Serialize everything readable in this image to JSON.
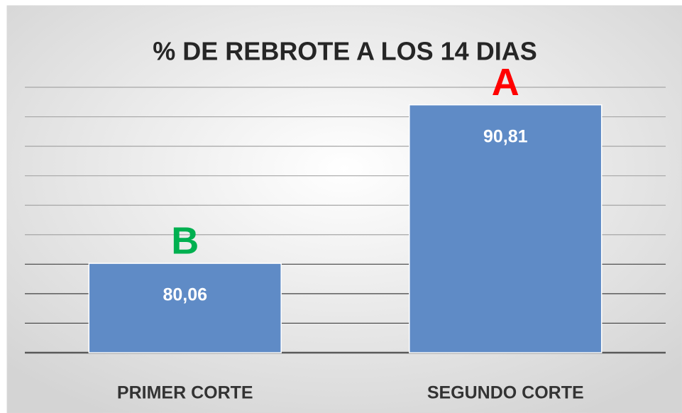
{
  "chart_data": {
    "type": "bar",
    "title": "% DE REBROTE A LOS 14 DIAS",
    "categories": [
      "PRIMER CORTE",
      "SEGUNDO CORTE"
    ],
    "values": [
      80.06,
      90.81
    ],
    "value_labels": [
      "80,06",
      "90,81"
    ],
    "annotations": [
      {
        "text": "B",
        "color": "#00b050"
      },
      {
        "text": "A",
        "color": "#ff0000"
      }
    ],
    "color": "#5f8bc6",
    "ylim": [
      74,
      92
    ],
    "yticks": [
      74,
      76,
      78,
      80,
      82,
      84,
      86,
      88,
      90,
      92
    ],
    "grid": true
  }
}
